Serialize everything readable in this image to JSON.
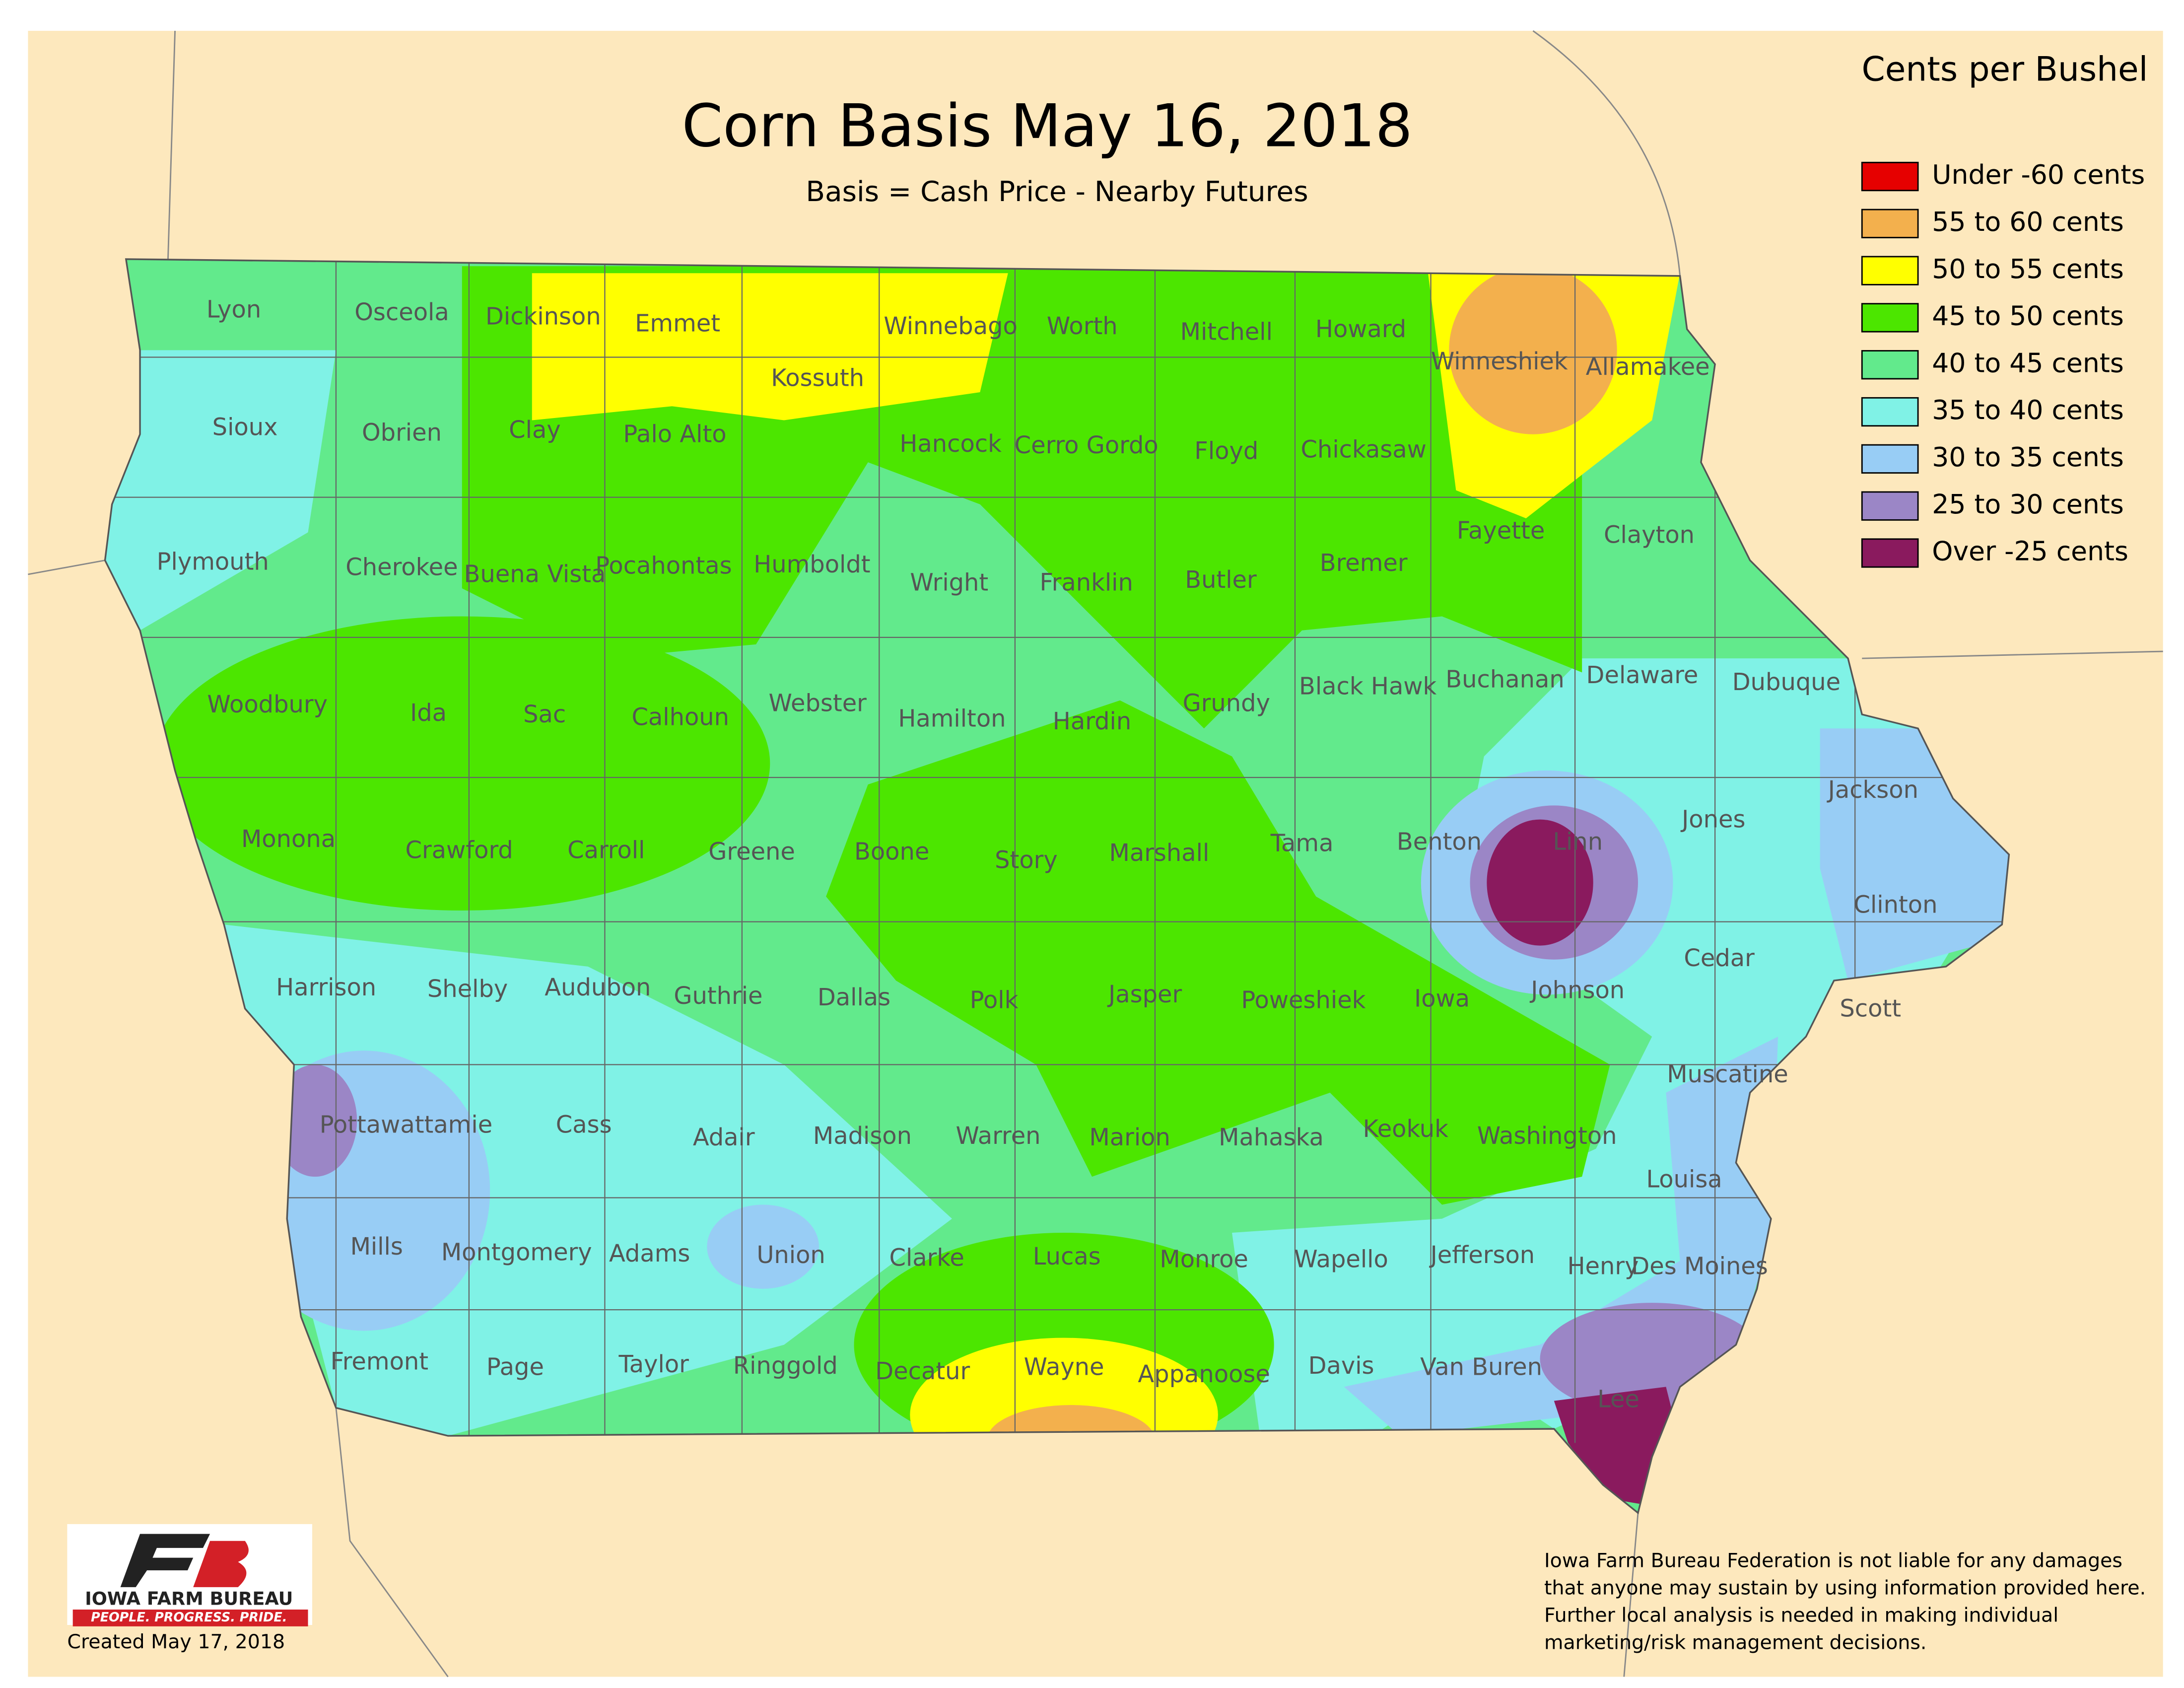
{
  "title": "Corn Basis May 16, 2018",
  "subtitle": "Basis = Cash Price - Nearby Futures",
  "legend": {
    "title": "Cents per Bushel",
    "items": [
      {
        "label": "Under -60 cents",
        "color": "#e60000"
      },
      {
        "label": "55 to 60 cents",
        "color": "#f3b04d"
      },
      {
        "label": "50 to 55 cents",
        "color": "#ffff00"
      },
      {
        "label": "45 to 50 cents",
        "color": "#4ce600"
      },
      {
        "label": "40 to 45 cents",
        "color": "#62ea8c"
      },
      {
        "label": "35 to 40 cents",
        "color": "#80f2e6"
      },
      {
        "label": "30 to 35 cents",
        "color": "#98cdf5"
      },
      {
        "label": "25 to 30 cents",
        "color": "#9b86c6"
      },
      {
        "label": "Over -25 cents",
        "color": "#8a1a5e"
      }
    ]
  },
  "counties": [
    "Lyon",
    "Osceola",
    "Dickinson",
    "Emmet",
    "Winnebago",
    "Worth",
    "Mitchell",
    "Howard",
    "Winneshiek",
    "Allamakee",
    "Sioux",
    "Obrien",
    "Clay",
    "Palo Alto",
    "Kossuth",
    "Hancock",
    "Cerro Gordo",
    "Floyd",
    "Chickasaw",
    "Fayette",
    "Clayton",
    "Plymouth",
    "Cherokee",
    "Buena Vista",
    "Pocahontas",
    "Humboldt",
    "Wright",
    "Franklin",
    "Butler",
    "Bremer",
    "Buchanan",
    "Delaware",
    "Dubuque",
    "Woodbury",
    "Ida",
    "Sac",
    "Calhoun",
    "Webster",
    "Hamilton",
    "Hardin",
    "Grundy",
    "Black Hawk",
    "Monona",
    "Crawford",
    "Carroll",
    "Greene",
    "Boone",
    "Story",
    "Marshall",
    "Tama",
    "Benton",
    "Linn",
    "Jones",
    "Jackson",
    "Harrison",
    "Shelby",
    "Audubon",
    "Guthrie",
    "Dallas",
    "Polk",
    "Jasper",
    "Poweshiek",
    "Iowa",
    "Johnson",
    "Cedar",
    "Clinton",
    "Scott",
    "Pottawattamie",
    "Cass",
    "Adair",
    "Madison",
    "Warren",
    "Marion",
    "Mahaska",
    "Keokuk",
    "Washington",
    "Muscatine",
    "Louisa",
    "Mills",
    "Montgomery",
    "Adams",
    "Union",
    "Clarke",
    "Lucas",
    "Monroe",
    "Wapello",
    "Jefferson",
    "Henry",
    "Des Moines",
    "Fremont",
    "Page",
    "Taylor",
    "Ringgold",
    "Decatur",
    "Wayne",
    "Appanoose",
    "Davis",
    "Van Buren",
    "Lee"
  ],
  "logo": {
    "name": "IOWA FARM BUREAU",
    "tagline": "PEOPLE. PROGRESS. PRIDE."
  },
  "created": "Created May 17, 2018",
  "disclaimer": [
    "Iowa Farm Bureau Federation is not liable for any damages",
    "that anyone may sustain by using information provided here.",
    "Further local analysis is needed in making individual",
    "marketing/risk management decisions."
  ]
}
